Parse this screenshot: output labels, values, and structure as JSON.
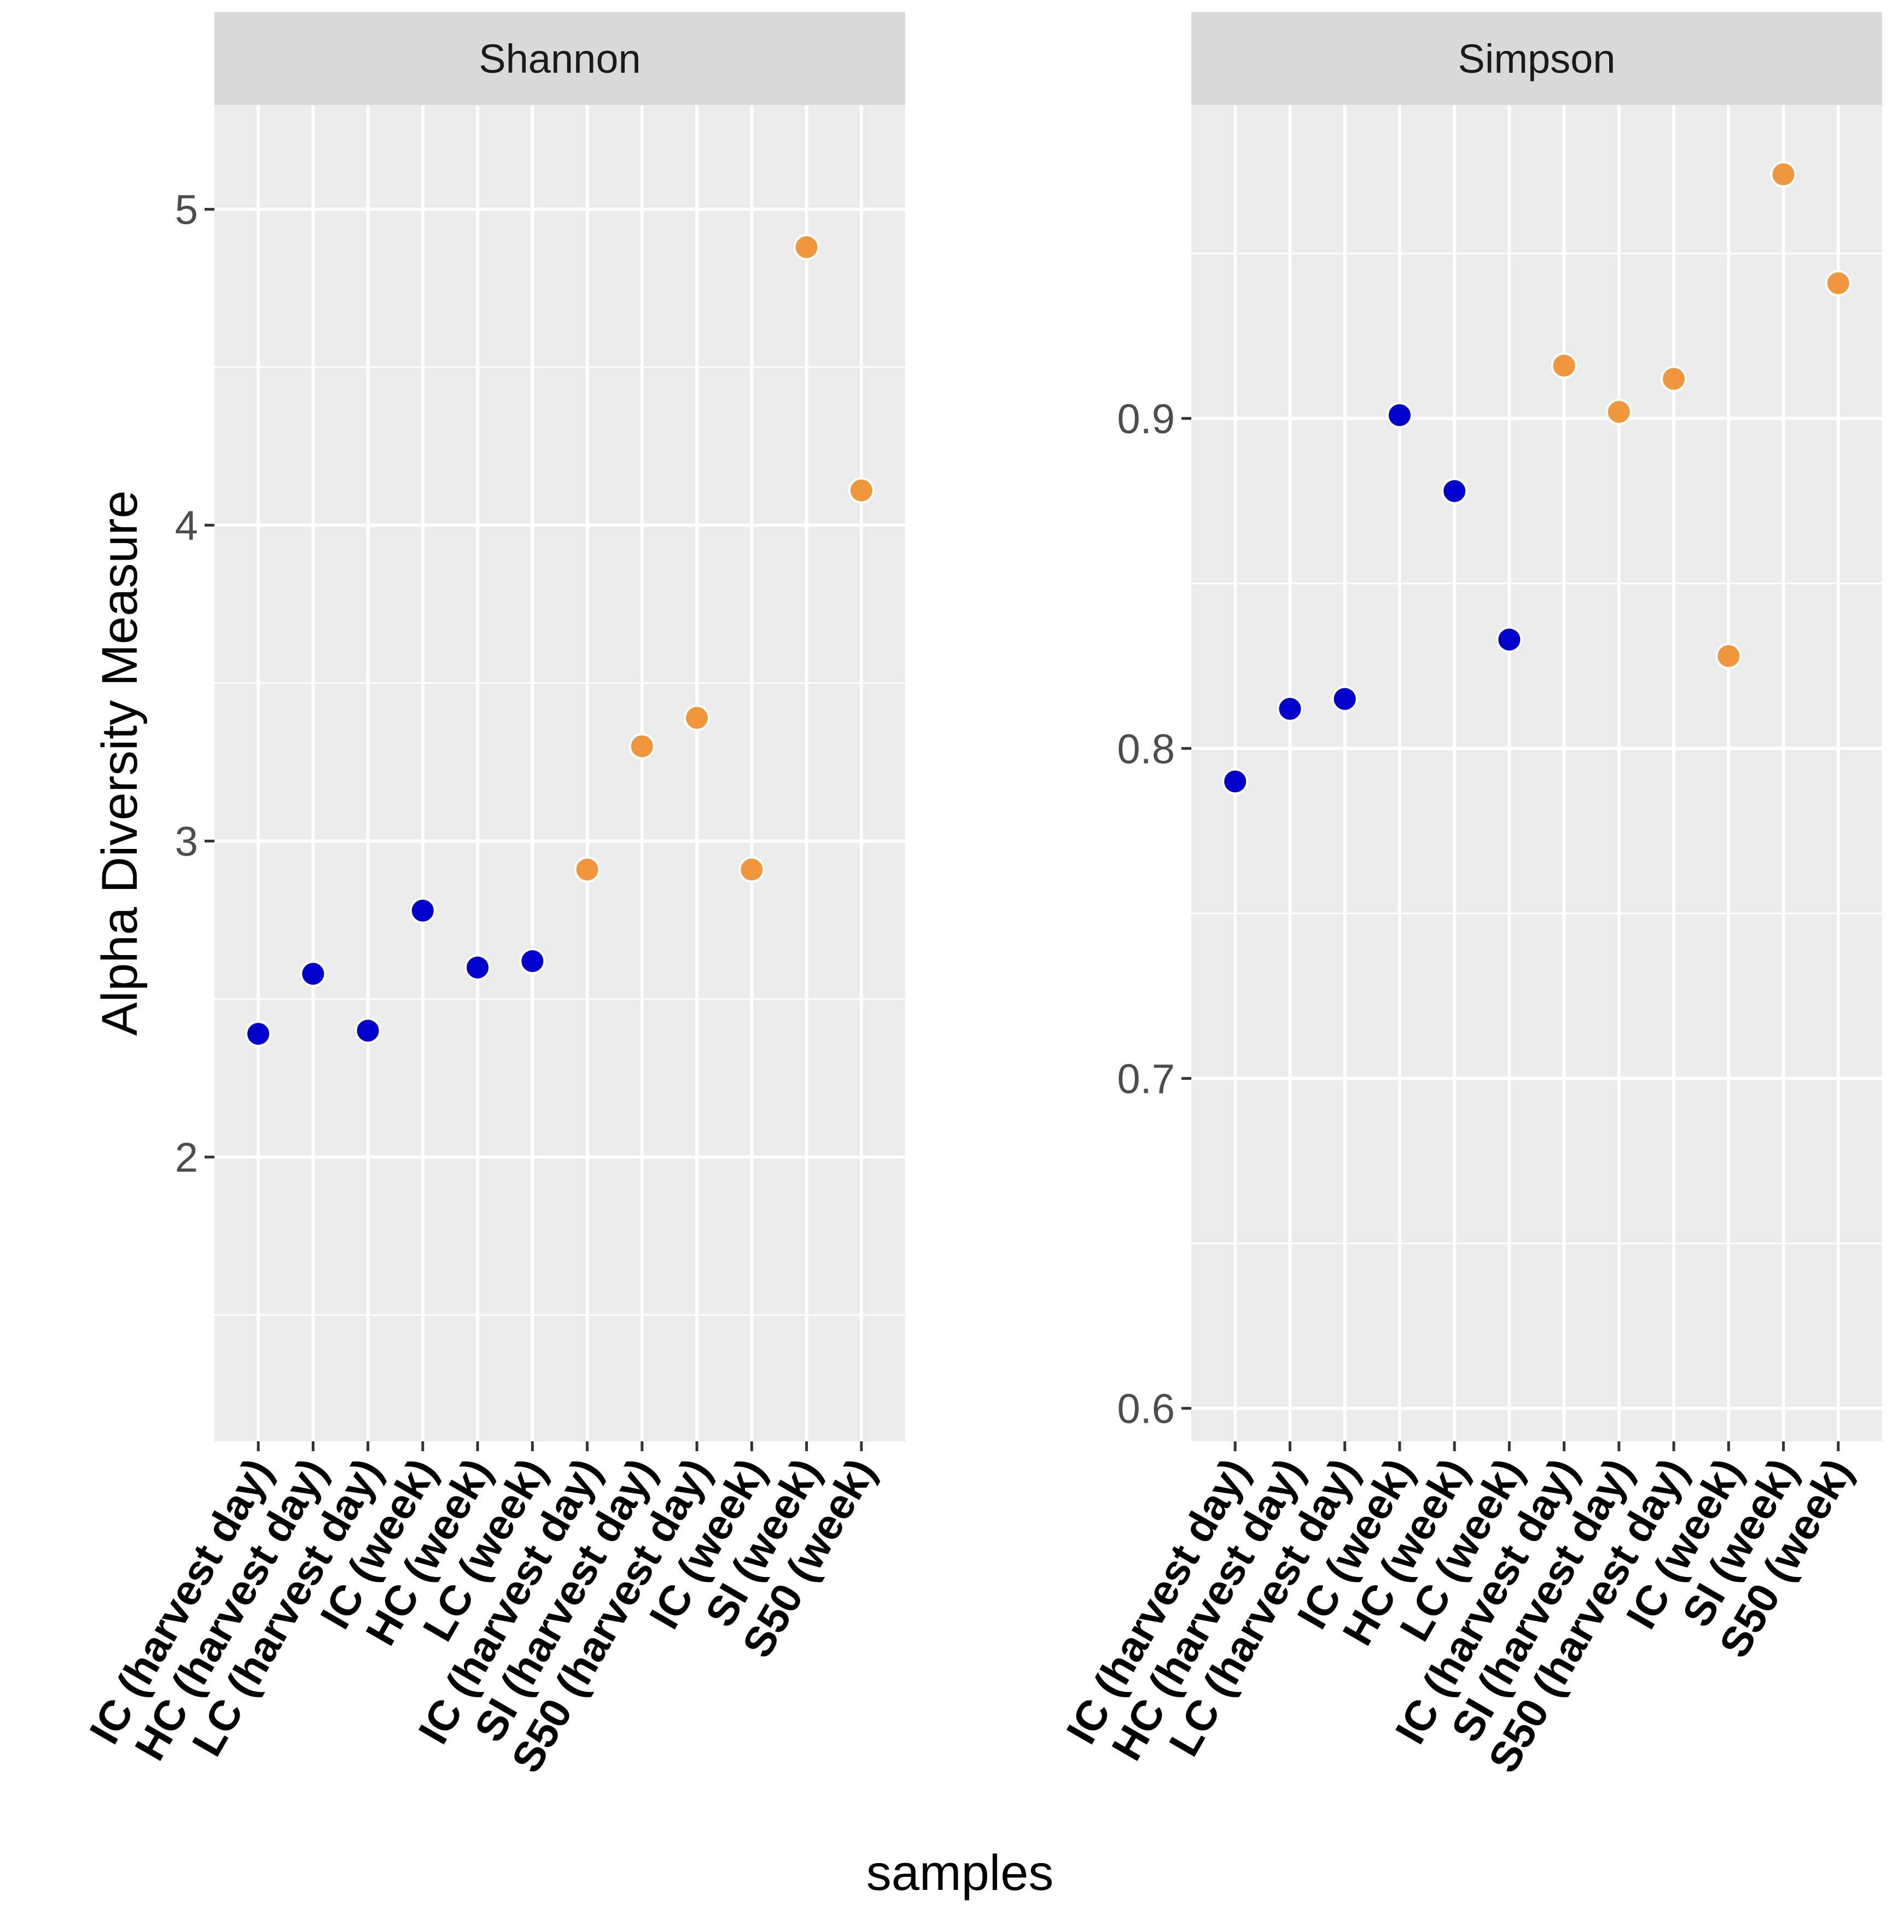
{
  "chart_data": {
    "type": "scatter",
    "ylabel": "Alpha Diversity Measure",
    "xlabel": "samples",
    "colors": {
      "group_a": "#0000cc",
      "group_b": "#f0963c"
    },
    "categories": [
      "IC (harvest day)",
      "HC (harvest day)",
      "LC (harvest day)",
      "IC (week)",
      "HC (week)",
      "LC (week)",
      "IC (harvest day)",
      "SI (harvest day)",
      "S50 (harvest day)",
      "IC (week)",
      "SI (week)",
      "S50 (week)"
    ],
    "point_groups": [
      "group_a",
      "group_a",
      "group_a",
      "group_a",
      "group_a",
      "group_a",
      "group_b",
      "group_b",
      "group_b",
      "group_b",
      "group_b",
      "group_b"
    ],
    "panels": [
      {
        "title": "Shannon",
        "ylim": [
          1.1,
          5.33
        ],
        "yticks": [
          2,
          3,
          4,
          5
        ],
        "ytick_labels": [
          "2",
          "3",
          "4",
          "5"
        ],
        "values": [
          2.39,
          2.58,
          2.4,
          2.78,
          2.6,
          2.62,
          2.91,
          3.3,
          3.39,
          2.91,
          4.88,
          4.11
        ]
      },
      {
        "title": "Simpson",
        "ylim": [
          0.59,
          0.995
        ],
        "yticks": [
          0.6,
          0.7,
          0.8,
          0.9
        ],
        "ytick_labels": [
          "0.6",
          "0.7",
          "0.8",
          "0.9"
        ],
        "values": [
          0.79,
          0.812,
          0.815,
          0.901,
          0.878,
          0.833,
          0.916,
          0.902,
          0.912,
          0.828,
          0.974,
          0.941
        ]
      }
    ]
  }
}
